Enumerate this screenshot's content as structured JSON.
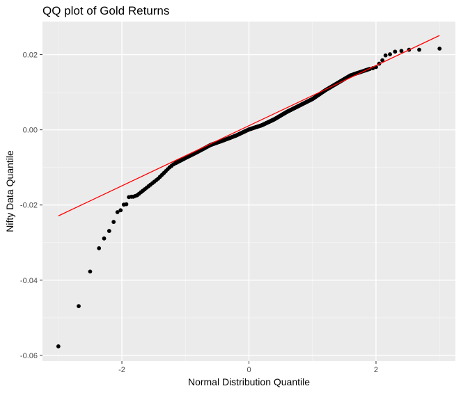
{
  "chart_data": {
    "type": "scatter",
    "title": "QQ plot of Gold Returns",
    "xlabel": "Normal Distribution Quantile",
    "ylabel": "Nifty Data Quantile",
    "xlim": [
      -3.25,
      3.25
    ],
    "ylim": [
      -0.0615,
      0.0288
    ],
    "x_ticks": [
      -2,
      0,
      2
    ],
    "x_tick_labels": [
      "-2",
      "0",
      "2"
    ],
    "y_ticks": [
      -0.06,
      -0.04,
      -0.02,
      0.0,
      0.02
    ],
    "y_tick_labels": [
      "-0.06",
      "-0.04",
      "-0.02",
      "0.00",
      "0.02"
    ],
    "grid": true,
    "background": "#ebebeb",
    "point_color": "#000000",
    "line_color": "#ff0000",
    "reference_line": {
      "x": [
        -3.0,
        3.0
      ],
      "y": [
        -0.0229,
        0.0251
      ]
    },
    "tail_points": {
      "low": [
        [
          -3.0,
          -0.0576
        ],
        [
          -2.68,
          -0.0469
        ],
        [
          -2.5,
          -0.0377
        ],
        [
          -2.36,
          -0.0315
        ],
        [
          -2.28,
          -0.0289
        ],
        [
          -2.2,
          -0.0269
        ],
        [
          -2.13,
          -0.0245
        ],
        [
          -2.07,
          -0.0219
        ],
        [
          -2.02,
          -0.0214
        ],
        [
          -1.97,
          -0.0199
        ],
        [
          -1.93,
          -0.0198
        ],
        [
          -1.89,
          -0.0179
        ],
        [
          -1.85,
          -0.0178
        ],
        [
          -1.82,
          -0.0178
        ],
        [
          -1.79,
          -0.0176
        ],
        [
          -1.76,
          -0.0174
        ],
        [
          -1.73,
          -0.017
        ],
        [
          -1.7,
          -0.0166
        ],
        [
          -1.67,
          -0.0162
        ],
        [
          -1.64,
          -0.0158
        ],
        [
          -1.61,
          -0.0154
        ],
        [
          -1.58,
          -0.015
        ],
        [
          -1.55,
          -0.0146
        ],
        [
          -1.52,
          -0.0142
        ],
        [
          -1.49,
          -0.0138
        ],
        [
          -1.46,
          -0.0134
        ],
        [
          -1.43,
          -0.013
        ],
        [
          -1.4,
          -0.0125
        ],
        [
          -1.37,
          -0.012
        ],
        [
          -1.34,
          -0.0115
        ],
        [
          -1.31,
          -0.011
        ],
        [
          -1.28,
          -0.0105
        ],
        [
          -1.25,
          -0.01
        ],
        [
          -1.22,
          -0.0096
        ],
        [
          -1.19,
          -0.0092
        ],
        [
          -1.16,
          -0.0089
        ]
      ],
      "high": [
        [
          1.9,
          0.0162
        ],
        [
          1.95,
          0.0164
        ],
        [
          2.0,
          0.0167
        ],
        [
          2.05,
          0.0176
        ],
        [
          2.1,
          0.0185
        ],
        [
          2.15,
          0.0198
        ],
        [
          2.22,
          0.0201
        ],
        [
          2.3,
          0.0208
        ],
        [
          2.4,
          0.021
        ],
        [
          2.52,
          0.0213
        ],
        [
          2.68,
          0.0213
        ],
        [
          3.0,
          0.0216
        ]
      ]
    },
    "body_line": [
      [
        -1.16,
        -0.0089
      ],
      [
        -1.0,
        -0.0075
      ],
      [
        -0.8,
        -0.0058
      ],
      [
        -0.6,
        -0.004
      ],
      [
        -0.4,
        -0.0028
      ],
      [
        -0.2,
        -0.0015
      ],
      [
        0.0,
        0.0001
      ],
      [
        0.2,
        0.0012
      ],
      [
        0.4,
        0.0028
      ],
      [
        0.6,
        0.0048
      ],
      [
        0.8,
        0.0065
      ],
      [
        1.0,
        0.0082
      ],
      [
        1.2,
        0.0105
      ],
      [
        1.4,
        0.0125
      ],
      [
        1.6,
        0.0145
      ],
      [
        1.9,
        0.0162
      ]
    ],
    "body_point_count": 480
  }
}
